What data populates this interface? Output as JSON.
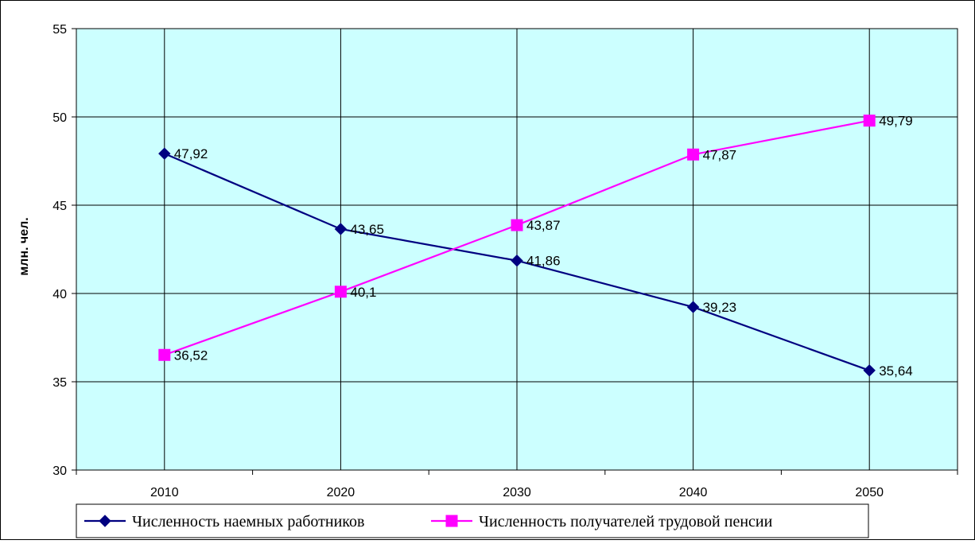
{
  "chart_data": {
    "type": "line",
    "title": "",
    "xlabel": "",
    "ylabel": "млн. чел.",
    "categories": [
      "2010",
      "2020",
      "2030",
      "2040",
      "2050"
    ],
    "ylim": [
      30,
      55
    ],
    "yticks": [
      30,
      35,
      40,
      45,
      50,
      55
    ],
    "grid": true,
    "plot_background": "#ccffff",
    "legend_position": "bottom",
    "series": [
      {
        "name": "Численность наемных работников",
        "values": [
          47.92,
          43.65,
          41.86,
          39.23,
          35.64
        ],
        "labels": [
          "47,92",
          "43,65",
          "41,86",
          "39,23",
          "35,64"
        ],
        "color": "#000080",
        "marker": "diamond"
      },
      {
        "name": "Численность получателей трудовой пенсии",
        "values": [
          36.52,
          40.1,
          43.87,
          47.87,
          49.79
        ],
        "labels": [
          "36,52",
          "40,1",
          "43,87",
          "47,87",
          "49,79"
        ],
        "color": "#ff00ff",
        "marker": "square"
      }
    ]
  }
}
